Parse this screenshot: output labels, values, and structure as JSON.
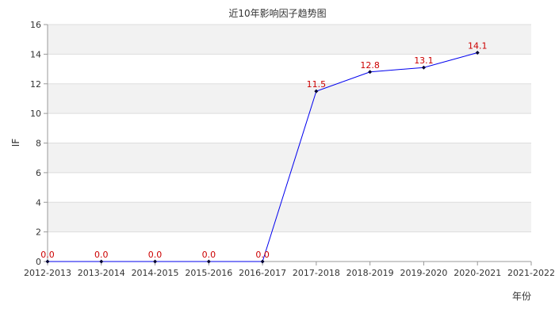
{
  "chart_data": {
    "type": "line",
    "title": "近10年影响因子趋势图",
    "xlabel": "年份",
    "ylabel": "IF",
    "categories": [
      "2012-2013",
      "2013-2014",
      "2014-2015",
      "2015-2016",
      "2016-2017",
      "2017-2018",
      "2018-2019",
      "2019-2020",
      "2020-2021",
      "2021-2022"
    ],
    "series": [
      {
        "values": [
          0.0,
          0.0,
          0.0,
          0.0,
          0.0,
          11.5,
          12.8,
          13.1,
          14.1,
          null
        ]
      }
    ],
    "data_labels": [
      "0.0",
      "0.0",
      "0.0",
      "0.0",
      "0.0",
      "11.5",
      "12.8",
      "13.1",
      "14.1",
      ""
    ],
    "y_ticks": [
      "0",
      "2",
      "4",
      "6",
      "8",
      "10",
      "12",
      "14",
      "16"
    ],
    "ylim": [
      0,
      16
    ],
    "grid": true,
    "colors": {
      "line": "#0000ee",
      "marker": "#000033",
      "label": "#cc0000",
      "band": "#f2f2f2",
      "grid": "#dddddd"
    }
  }
}
